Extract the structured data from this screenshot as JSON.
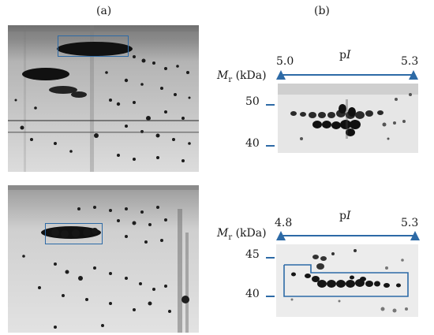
{
  "panels": {
    "a_label": "(a)",
    "b_label": "(b)"
  },
  "top_zoom": {
    "mr_label_main": "M",
    "mr_label_sub": "r",
    "mr_label_unit": " (kDa)",
    "pi_label_main": "p",
    "pi_label_italic": "I",
    "pi_left": "5.0",
    "pi_right": "5.3",
    "mw_ticks": [
      "50",
      "40"
    ]
  },
  "bottom_zoom": {
    "mr_label_main": "M",
    "mr_label_sub": "r",
    "mr_label_unit": " (kDa)",
    "pi_label_main": "p",
    "pi_label_italic": "I",
    "pi_left": "4.8",
    "pi_right": "5.3",
    "mw_ticks": [
      "45",
      "40"
    ]
  },
  "colors": {
    "highlight": "#2d6aa6",
    "axis": "#2d6aa6"
  }
}
